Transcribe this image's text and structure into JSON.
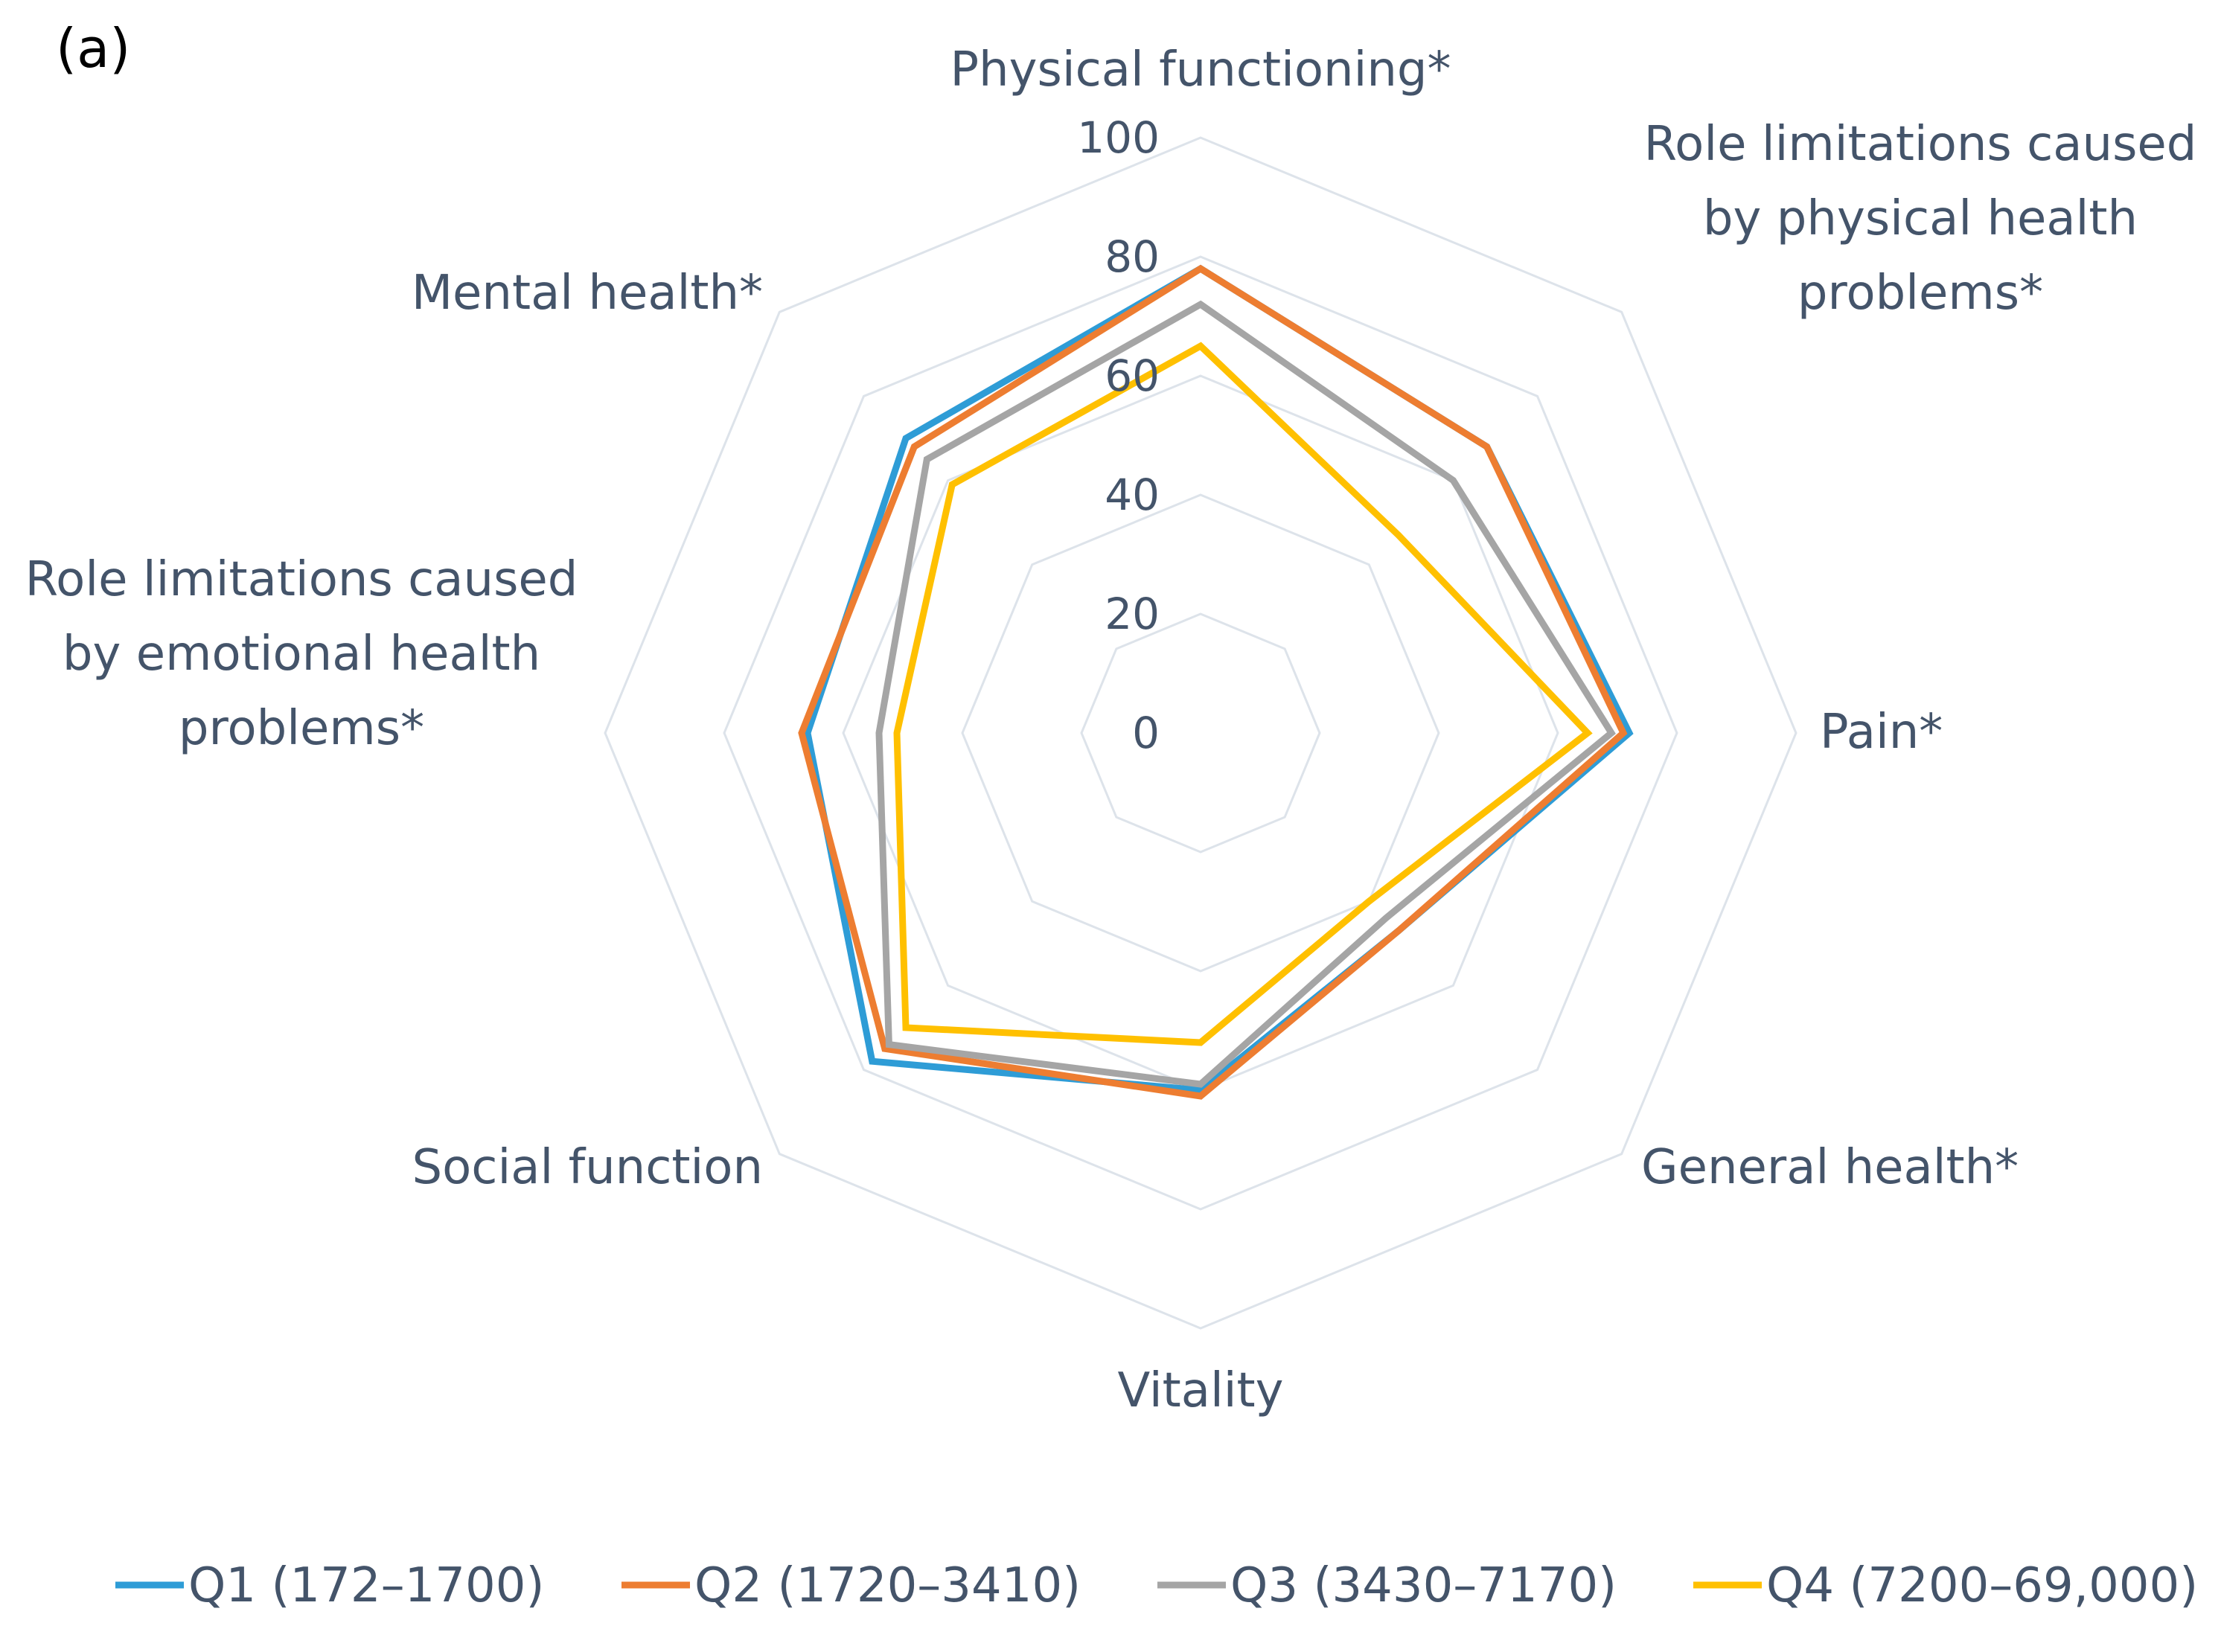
{
  "panel_label": "(a)",
  "chart_data": {
    "type": "radar",
    "title": "",
    "axes": [
      {
        "name": "Physical functioning*",
        "lines": [
          "Physical functioning*"
        ]
      },
      {
        "name": "Role limitations caused by physical health problems*",
        "lines": [
          "Role limitations caused",
          "by physical health",
          "problems*"
        ]
      },
      {
        "name": "Pain*",
        "lines": [
          "Pain*"
        ]
      },
      {
        "name": "General health*",
        "lines": [
          "General health*"
        ]
      },
      {
        "name": "Vitality",
        "lines": [
          "Vitality"
        ]
      },
      {
        "name": "Social function",
        "lines": [
          "Social function"
        ]
      },
      {
        "name": "Role limitations caused by emotional health problems*",
        "lines": [
          "Role limitations caused",
          "by emotional health",
          "problems*"
        ]
      },
      {
        "name": "Mental health*",
        "lines": [
          "Mental health*"
        ]
      }
    ],
    "r_range": [
      0,
      100
    ],
    "ticks": [
      0,
      20,
      40,
      60,
      80,
      100
    ],
    "series": [
      {
        "name": "Q1 (172–1700)",
        "color": "#2e9cd6",
        "values": [
          78,
          68,
          72,
          47,
          60,
          78,
          66,
          70
        ]
      },
      {
        "name": "Q2 (1720–3410)",
        "color": "#ed7d31",
        "values": [
          78,
          68,
          71,
          47,
          61,
          75,
          67,
          68
        ]
      },
      {
        "name": "Q3 (3430–7170)",
        "color": "#a5a5a5",
        "values": [
          72,
          60,
          69,
          44,
          59,
          74,
          54,
          65
        ]
      },
      {
        "name": "Q4 (7200–69,000)",
        "color": "#ffc000",
        "values": [
          65,
          47,
          65,
          40,
          52,
          70,
          51,
          59
        ]
      }
    ],
    "grid_color": "#dde3ea",
    "legend_position": "bottom"
  }
}
